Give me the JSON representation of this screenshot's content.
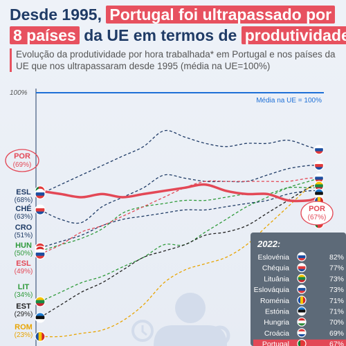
{
  "header": {
    "line1_a": "Desde 1995,",
    "line1_b": "Portugal foi ultrapassado por",
    "line2_a": "8 países",
    "line2_b": "da UE em termos de",
    "line2_c": "produtividade",
    "subtitle": "Evolução da produtividade por hora trabalhada* em Portugal e nos países da UE que nos ultrapassaram desde 1995 (média na UE=100%)"
  },
  "reference": {
    "axis_label": "100%",
    "line_label": "Média na UE = 100%",
    "value": 100
  },
  "start_labels": [
    {
      "code": "POR",
      "pct": "(69%)",
      "color": "#e34856",
      "boxed": true
    },
    {
      "code": "ESL",
      "pct": "(68%)",
      "color": "#1f3b66"
    },
    {
      "code": "CHÉ",
      "pct": "(63%)",
      "color": "#1f3b66"
    },
    {
      "code": "CRO",
      "pct": "(51%)",
      "color": "#1f3b66"
    },
    {
      "code": "HUN",
      "pct": "(50%)",
      "color": "#2e9a3a"
    },
    {
      "code": "ESL",
      "pct": "(49%)",
      "color": "#e34856"
    },
    {
      "code": "LIT",
      "pct": "(34%)",
      "color": "#2e9a3a"
    },
    {
      "code": "EST",
      "pct": "(29%)",
      "color": "#222222"
    },
    {
      "code": "ROM",
      "pct": "(23%)",
      "color": "#e8a400"
    }
  ],
  "end_label": {
    "code": "POR",
    "pct": "(67%)"
  },
  "legend": {
    "title": "2022:",
    "rows": [
      {
        "country": "Eslovénia",
        "value": "82%",
        "flag": [
          "#ffffff",
          "#1d4fa0",
          "#e23a3a"
        ]
      },
      {
        "country": "Chéquia",
        "value": "77%",
        "flag": [
          "#ffffff",
          "#e23a3a",
          "#1d4fa0"
        ]
      },
      {
        "country": "Lituânia",
        "value": "73%",
        "flag": [
          "#f5c400",
          "#1a8a45",
          "#c8242e"
        ]
      },
      {
        "country": "Eslováquia",
        "value": "73%",
        "flag": [
          "#ffffff",
          "#1d4fa0",
          "#e23a3a"
        ]
      },
      {
        "country": "Roménia",
        "value": "71%",
        "flag": [
          "#1d4fa0",
          "#f5c400",
          "#d42828"
        ]
      },
      {
        "country": "Estónia",
        "value": "71%",
        "flag": [
          "#1d7ad0",
          "#111111",
          "#ffffff"
        ]
      },
      {
        "country": "Hungria",
        "value": "70%",
        "flag": [
          "#d42828",
          "#ffffff",
          "#2e8a3a"
        ]
      },
      {
        "country": "Croácia",
        "value": "69%",
        "flag": [
          "#e23a3a",
          "#ffffff",
          "#1d4fa0"
        ]
      },
      {
        "country": "Portugal",
        "value": "67%",
        "flag": [
          "#0c7d2c",
          "#e23a3a",
          "#e23a3a"
        ],
        "highlight": true
      }
    ]
  },
  "chart_data": {
    "type": "line",
    "x": [
      1995,
      1997,
      1999,
      2001,
      2003,
      2005,
      2007,
      2009,
      2011,
      2013,
      2015,
      2017,
      2019,
      2021,
      2022
    ],
    "ylim": [
      20,
      100
    ],
    "series": [
      {
        "name": "POR",
        "color": "#e34856",
        "dashed": false,
        "values": [
          69,
          68,
          67,
          68,
          67,
          68,
          69,
          70,
          71,
          69,
          68,
          68,
          66,
          66,
          67
        ]
      },
      {
        "name": "ESL",
        "color": "#1f3b66",
        "dashed": true,
        "values": [
          68,
          71,
          74,
          77,
          80,
          83,
          88,
          86,
          84,
          83,
          84,
          84,
          85,
          83,
          82
        ]
      },
      {
        "name": "CHÉ",
        "color": "#1f3b66",
        "dashed": true,
        "values": [
          63,
          60,
          59,
          64,
          67,
          70,
          74,
          73,
          72,
          72,
          72,
          74,
          76,
          77,
          77
        ]
      },
      {
        "name": "CRO",
        "color": "#1f3b66",
        "dashed": true,
        "values": [
          51,
          53,
          55,
          58,
          60,
          61,
          62,
          63,
          63,
          64,
          65,
          66,
          68,
          69,
          69
        ]
      },
      {
        "name": "HUN",
        "color": "#2e9a3a",
        "dashed": true,
        "values": [
          50,
          52,
          54,
          57,
          62,
          64,
          65,
          66,
          66,
          67,
          68,
          68,
          70,
          70,
          70
        ]
      },
      {
        "name": "ESL",
        "color": "#e34856",
        "dashed": true,
        "values": [
          49,
          52,
          56,
          58,
          61,
          64,
          67,
          70,
          72,
          72,
          72,
          72,
          72,
          73,
          73
        ]
      },
      {
        "name": "LIT",
        "color": "#2e9a3a",
        "dashed": true,
        "values": [
          34,
          37,
          40,
          42,
          45,
          48,
          52,
          52,
          56,
          60,
          64,
          67,
          70,
          72,
          73
        ]
      },
      {
        "name": "EST",
        "color": "#222222",
        "dashed": true,
        "values": [
          29,
          33,
          37,
          40,
          44,
          48,
          50,
          52,
          55,
          56,
          58,
          62,
          66,
          70,
          71
        ]
      },
      {
        "name": "ROM",
        "color": "#e8a400",
        "dashed": true,
        "values": [
          23,
          23,
          24,
          25,
          28,
          33,
          40,
          44,
          46,
          48,
          52,
          58,
          64,
          70,
          71
        ]
      }
    ]
  }
}
